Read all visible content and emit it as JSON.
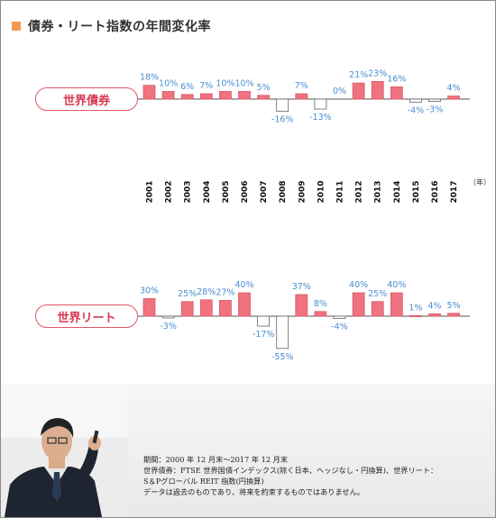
{
  "page_title": "債券・リート指数の年間変化率",
  "colors": {
    "positive": "#f0727f",
    "negative": "#ffffff",
    "label": "#4a8fd1",
    "pill": "#e0566a",
    "accent_square": "#f39b52"
  },
  "chart_data": [
    {
      "type": "bar",
      "name": "世界債券",
      "categories": [
        "2001",
        "2002",
        "2003",
        "2004",
        "2005",
        "2006",
        "2007",
        "2008",
        "2009",
        "2010",
        "2011",
        "2012",
        "2013",
        "2014",
        "2015",
        "2016",
        "2017"
      ],
      "values": [
        18,
        10,
        6,
        7,
        10,
        10,
        5,
        -16,
        7,
        -13,
        0,
        21,
        23,
        16,
        -4,
        -3,
        4
      ],
      "value_labels": [
        "18%",
        "10%",
        "6%",
        "7%",
        "10%",
        "10%",
        "5%",
        "-16%",
        "7%",
        "-13%",
        "0%",
        "21%",
        "23%",
        "16%",
        "-4%",
        "-3%",
        "4%"
      ],
      "year_unit": "（年）"
    },
    {
      "type": "bar",
      "name": "世界リート",
      "categories": [
        "2001",
        "2002",
        "2003",
        "2004",
        "2005",
        "2006",
        "2007",
        "2008",
        "2009",
        "2010",
        "2011",
        "2012",
        "2013",
        "2014",
        "2015",
        "2016",
        "2017"
      ],
      "values": [
        30,
        -3,
        25,
        28,
        27,
        40,
        -17,
        -55,
        37,
        8,
        -4,
        40,
        25,
        40,
        1,
        4,
        5
      ],
      "value_labels": [
        "30%",
        "-3%",
        "25%",
        "28%",
        "27%",
        "40%",
        "-17%",
        "-55%",
        "37%",
        "8%",
        "-4%",
        "40%",
        "25%",
        "40%",
        "1%",
        "4%",
        "5%"
      ],
      "year_unit": "（年）"
    }
  ],
  "footnote": {
    "line1": "期間：2000 年 12 月末～2017 年 12 月末",
    "line2": "世界債券：FTSE 世界国債インデックス(除く日本、ヘッジなし・円換算)、世界リート：",
    "line3": "S＆Pグローバル REIT 指数(円換算)",
    "line4": "データは過去のものであり、将来を約束するものではありません。"
  }
}
